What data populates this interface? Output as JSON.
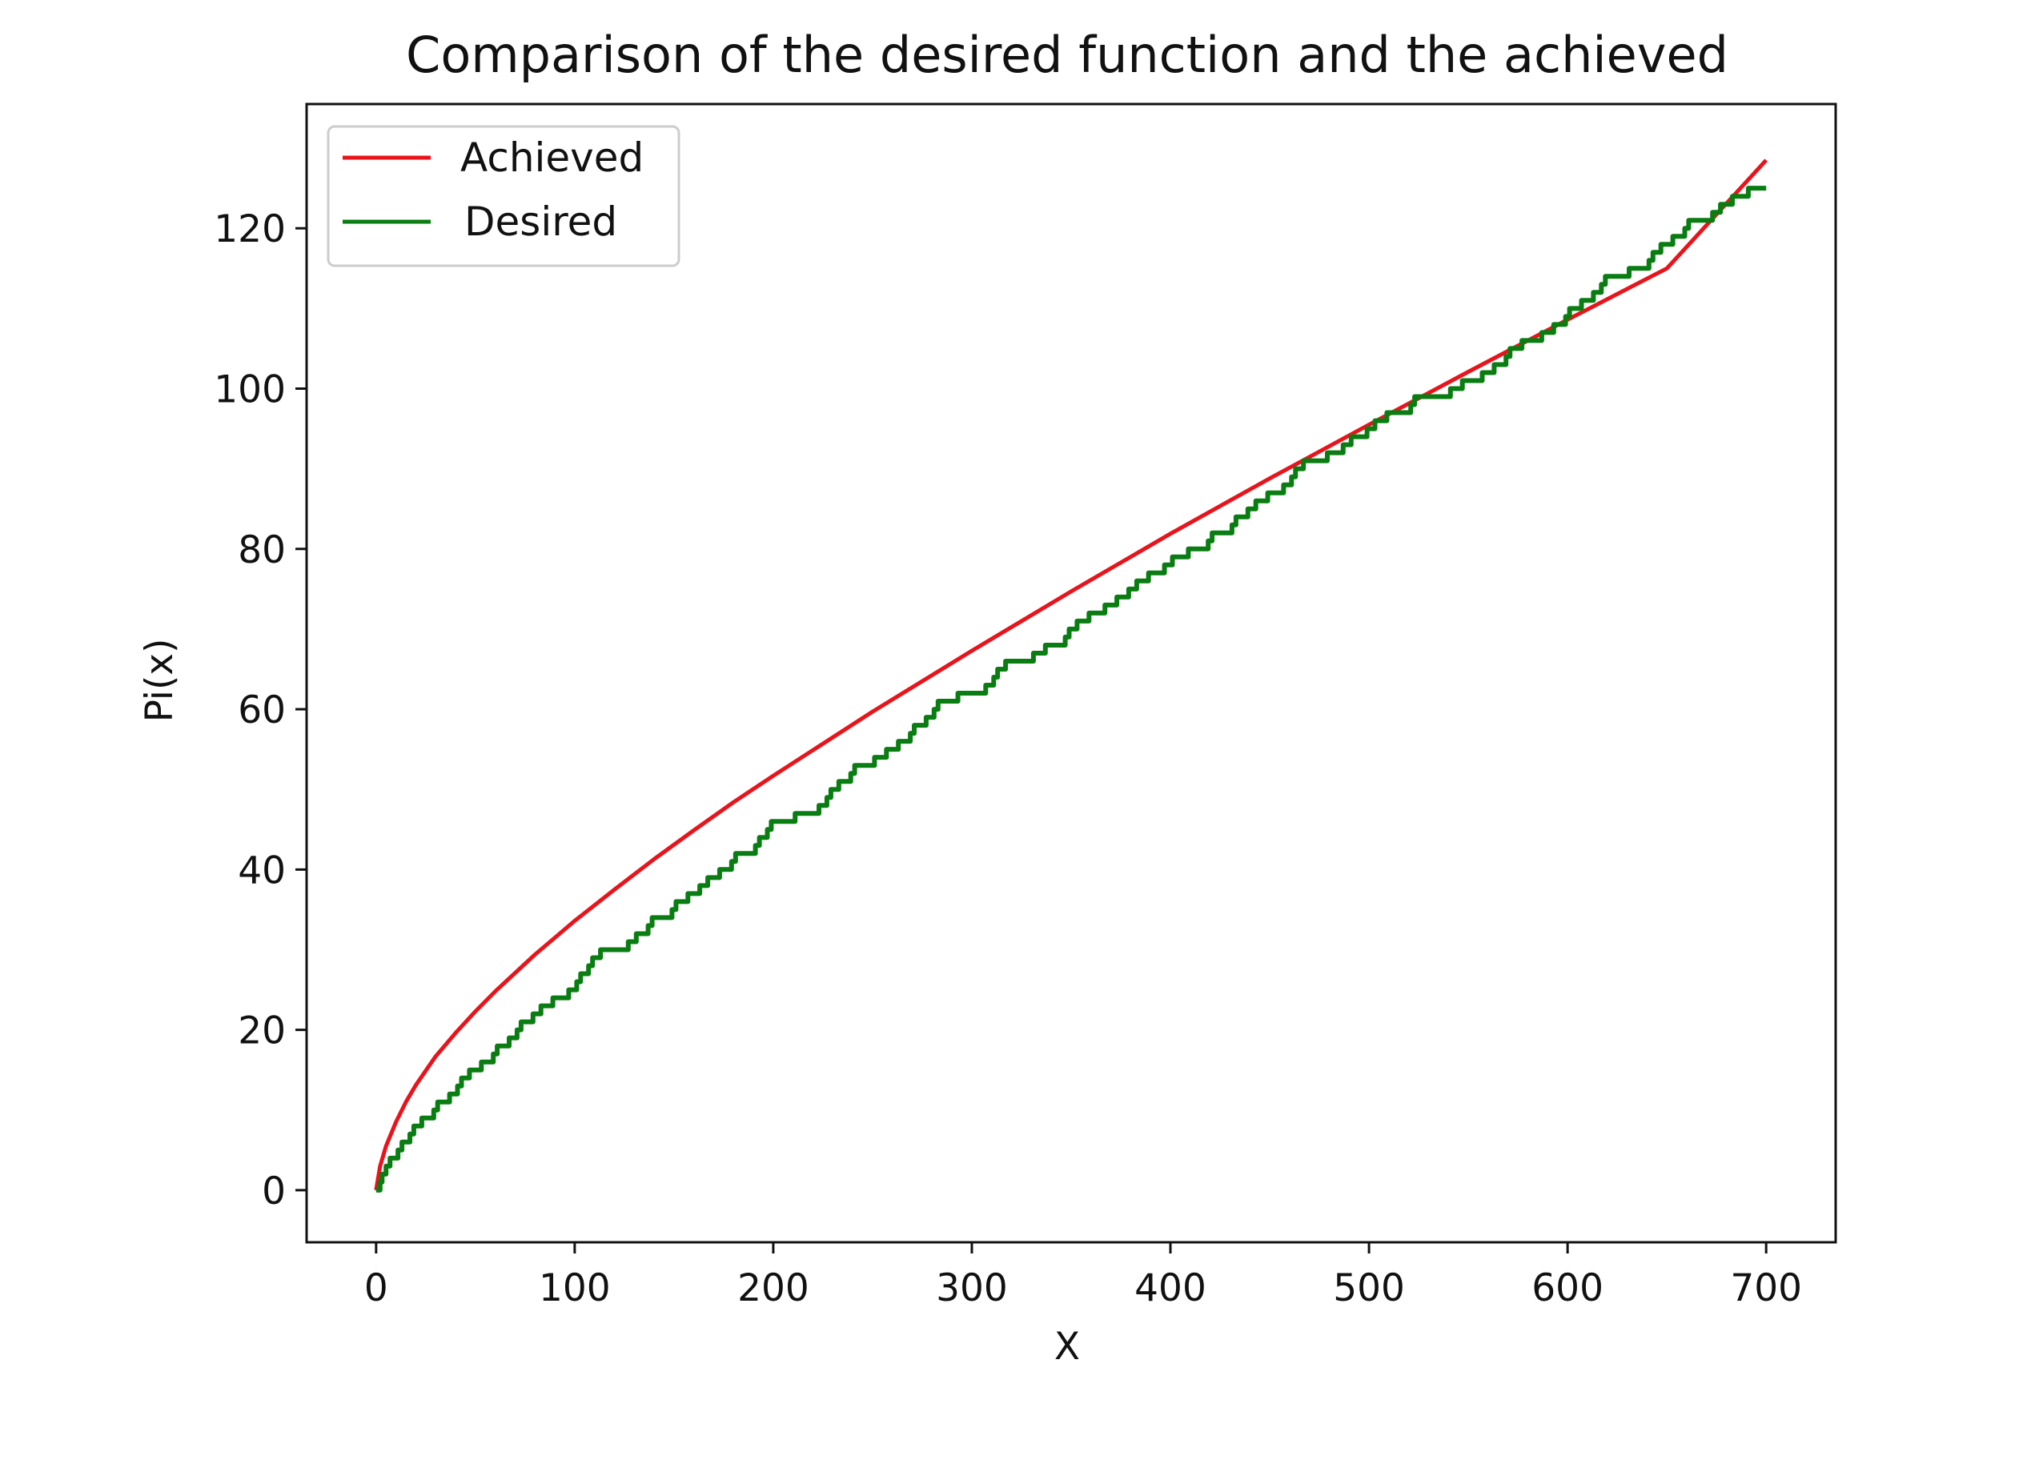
{
  "chart_data": {
    "type": "line",
    "title": "Comparison of the desired function and the achieved",
    "xlabel": "X",
    "ylabel": "Pi(x)",
    "xlim": [
      -35,
      735
    ],
    "ylim": [
      -6.5,
      135.5
    ],
    "xticks": [
      0,
      100,
      200,
      300,
      400,
      500,
      600,
      700
    ],
    "yticks": [
      0,
      20,
      40,
      60,
      80,
      100,
      120
    ],
    "grid": false,
    "legend_position": "top-left",
    "series": [
      {
        "name": "Achieved",
        "color": "#e8141b",
        "x": [
          0,
          2,
          5,
          10,
          15,
          20,
          30,
          40,
          50,
          60,
          70,
          80,
          90,
          100,
          120,
          140,
          160,
          180,
          200,
          250,
          300,
          350,
          400,
          450,
          500,
          550,
          600,
          650,
          700
        ],
        "y": [
          0,
          3,
          5.5,
          8.5,
          11,
          13.1,
          16.7,
          19.6,
          22.3,
          24.8,
          27.1,
          29.4,
          31.5,
          33.6,
          37.5,
          41.3,
          44.9,
          48.4,
          51.7,
          59.7,
          67.3,
          74.7,
          81.9,
          88.8,
          95.5,
          102.1,
          108.6,
          115,
          128.5
        ]
      },
      {
        "name": "Desired",
        "color": "#0a7d12",
        "x": [
          0,
          2,
          3,
          5,
          7,
          11,
          13,
          17,
          19,
          23,
          29,
          31,
          37,
          41,
          43,
          47,
          53,
          59,
          61,
          67,
          71,
          73,
          79,
          83,
          89,
          97,
          101,
          103,
          107,
          109,
          113,
          127,
          131,
          137,
          139,
          149,
          151,
          157,
          163,
          167,
          173,
          179,
          181,
          191,
          193,
          197,
          199,
          211,
          223,
          227,
          229,
          233,
          239,
          241,
          251,
          257,
          263,
          269,
          271,
          277,
          281,
          283,
          293,
          307,
          311,
          313,
          317,
          331,
          337,
          347,
          349,
          353,
          359,
          367,
          373,
          379,
          383,
          389,
          397,
          401,
          409,
          419,
          421,
          431,
          433,
          439,
          443,
          449,
          457,
          461,
          463,
          467,
          479,
          487,
          491,
          499,
          503,
          509,
          521,
          523,
          541,
          547,
          557,
          563,
          569,
          571,
          577,
          587,
          593,
          599,
          601,
          607,
          613,
          617,
          619,
          631,
          641,
          643,
          647,
          653,
          659,
          661,
          673,
          677,
          683,
          691,
          700
        ],
        "y": [
          0,
          1,
          2,
          3,
          4,
          5,
          6,
          7,
          8,
          9,
          10,
          11,
          12,
          13,
          14,
          15,
          16,
          17,
          18,
          19,
          20,
          21,
          22,
          23,
          24,
          25,
          26,
          27,
          28,
          29,
          30,
          31,
          32,
          33,
          34,
          35,
          36,
          37,
          38,
          39,
          40,
          41,
          42,
          43,
          44,
          45,
          46,
          47,
          48,
          49,
          50,
          51,
          52,
          53,
          54,
          55,
          56,
          57,
          58,
          59,
          60,
          61,
          62,
          63,
          64,
          65,
          66,
          67,
          68,
          69,
          70,
          71,
          72,
          73,
          74,
          75,
          76,
          77,
          78,
          79,
          80,
          81,
          82,
          83,
          84,
          85,
          86,
          87,
          88,
          89,
          90,
          91,
          92,
          93,
          94,
          95,
          96,
          97,
          98,
          99,
          100,
          101,
          102,
          103,
          104,
          105,
          106,
          107,
          108,
          109,
          110,
          111,
          112,
          113,
          114,
          115,
          116,
          117,
          118,
          119,
          120,
          121,
          122,
          123,
          124,
          125,
          125
        ]
      }
    ]
  }
}
